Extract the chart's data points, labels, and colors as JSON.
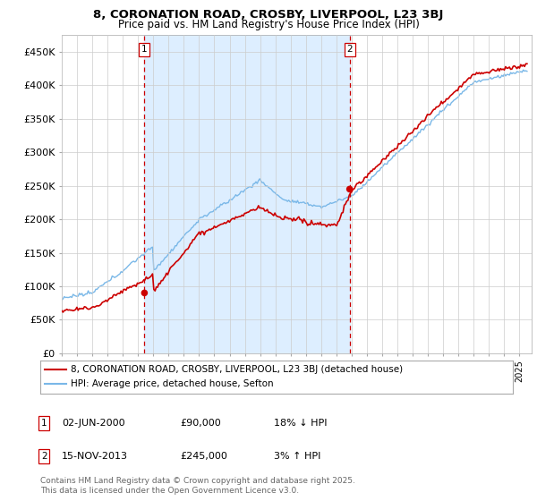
{
  "title_line1": "8, CORONATION ROAD, CROSBY, LIVERPOOL, L23 3BJ",
  "title_line2": "Price paid vs. HM Land Registry's House Price Index (HPI)",
  "ylim": [
    0,
    475000
  ],
  "yticks": [
    0,
    50000,
    100000,
    150000,
    200000,
    250000,
    300000,
    350000,
    400000,
    450000
  ],
  "ytick_labels": [
    "£0",
    "£50K",
    "£100K",
    "£150K",
    "£200K",
    "£250K",
    "£300K",
    "£350K",
    "£400K",
    "£450K"
  ],
  "hpi_color": "#7ab8e8",
  "price_color": "#cc0000",
  "vline_color": "#cc0000",
  "shade_color": "#ddeeff",
  "grid_color": "#cccccc",
  "background_color": "#ffffff",
  "legend_label_price": "8, CORONATION ROAD, CROSBY, LIVERPOOL, L23 3BJ (detached house)",
  "legend_label_hpi": "HPI: Average price, detached house, Sefton",
  "sale1_label": "1",
  "sale1_date": "02-JUN-2000",
  "sale1_price": "£90,000",
  "sale1_hpi": "18% ↓ HPI",
  "sale1_year": 2000.42,
  "sale1_value": 90000,
  "sale2_label": "2",
  "sale2_date": "15-NOV-2013",
  "sale2_price": "£245,000",
  "sale2_hpi": "3% ↑ HPI",
  "sale2_year": 2013.87,
  "sale2_value": 245000,
  "footnote": "Contains HM Land Registry data © Crown copyright and database right 2025.\nThis data is licensed under the Open Government Licence v3.0.",
  "xmin": 1995.0,
  "xmax": 2025.8
}
